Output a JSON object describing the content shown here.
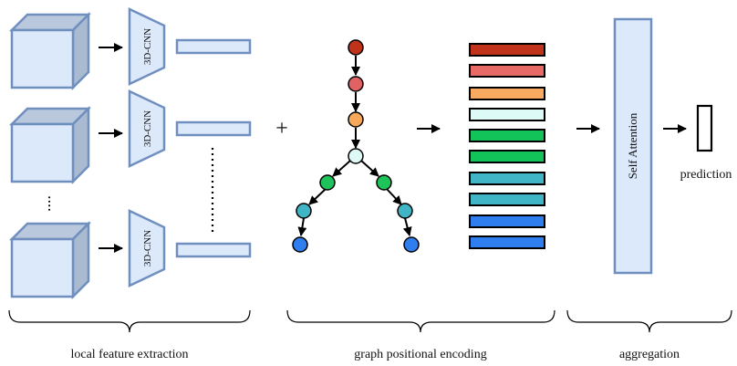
{
  "modules": {
    "cnn_label": "3D-CNN",
    "plus": "+",
    "self_attention": "Self Attention",
    "prediction": "prediction"
  },
  "groups": {
    "local": "local feature extraction",
    "graph": "graph positional encoding",
    "aggregation": "aggregation"
  },
  "colors": {
    "cube_front": "#dce9fb",
    "cube_top": "#b9c8dc",
    "cube_side": "#aabbd1",
    "cube_stroke": "#6f8fbf",
    "feature_fill": "#dce9fb",
    "attention_fill": "#dce9fb",
    "tree_nodes": [
      "#c0321a",
      "#e06262",
      "#f7a85a",
      "#ddfaf6",
      "#1ec45a",
      "#1ec45a",
      "#3fb5c6",
      "#3fb5c6",
      "#2f7ef0",
      "#2f7ef0"
    ],
    "encoding_stripes": [
      "#c0321a",
      "#e86a66",
      "#f7aa60",
      "#ddfaf6",
      "#12c35a",
      "#12c35a",
      "#3fb5c6",
      "#3fb5c6",
      "#2f7ef0",
      "#2f7ef0"
    ]
  }
}
